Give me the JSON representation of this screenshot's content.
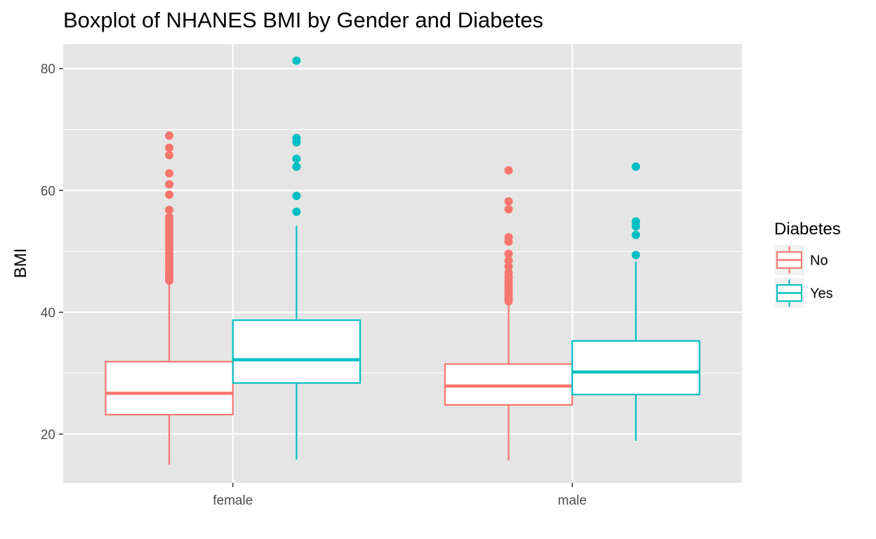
{
  "chart_data": {
    "type": "boxplot",
    "title": "Boxplot of NHANES BMI by Gender and Diabetes",
    "xlabel": "",
    "ylabel": "BMI",
    "ylim": [
      12,
      84
    ],
    "yticks": [
      20,
      40,
      60,
      80
    ],
    "grid": true,
    "legend": {
      "title": "Diabetes",
      "position": "right",
      "entries": [
        "No",
        "Yes"
      ]
    },
    "categories": [
      "female",
      "male"
    ],
    "colors": {
      "No": "#F8766D",
      "Yes": "#00BFC4",
      "panel": "#E5E5E5",
      "grid": "#FFFFFF"
    },
    "series": [
      {
        "name": "No",
        "color": "#F8766D",
        "boxes": [
          {
            "category": "female",
            "whisker_low": 15.0,
            "q1": 23.2,
            "median": 26.7,
            "q3": 31.9,
            "whisker_high": 45.0,
            "outliers": [
              45.2,
              45.6,
              46.0,
              46.5,
              47.0,
              47.5,
              48.0,
              48.5,
              49.0,
              49.6,
              50.2,
              50.8,
              51.4,
              52.0,
              52.6,
              53.2,
              53.8,
              54.4,
              55.0,
              55.6,
              56.8,
              59.3,
              61.0,
              62.8,
              65.8,
              67.0,
              69.0
            ]
          },
          {
            "category": "male",
            "whisker_low": 15.7,
            "q1": 24.8,
            "median": 27.9,
            "q3": 31.5,
            "whisker_high": 41.5,
            "outliers": [
              41.8,
              42.3,
              42.8,
              43.3,
              43.8,
              44.3,
              44.8,
              45.3,
              45.8,
              46.5,
              47.5,
              48.5,
              49.6,
              51.6,
              52.3,
              56.9,
              58.2,
              63.3
            ]
          }
        ]
      },
      {
        "name": "Yes",
        "color": "#00BFC4",
        "boxes": [
          {
            "category": "female",
            "whisker_low": 15.8,
            "q1": 28.4,
            "median": 32.2,
            "q3": 38.7,
            "whisker_high": 54.2,
            "outliers": [
              56.5,
              59.1,
              63.9,
              65.2,
              67.9,
              68.6,
              81.3
            ]
          },
          {
            "category": "male",
            "whisker_low": 18.9,
            "q1": 26.5,
            "median": 30.2,
            "q3": 35.3,
            "whisker_high": 48.3,
            "outliers": [
              49.4,
              52.7,
              54.1,
              54.9,
              63.9
            ]
          }
        ]
      }
    ]
  }
}
